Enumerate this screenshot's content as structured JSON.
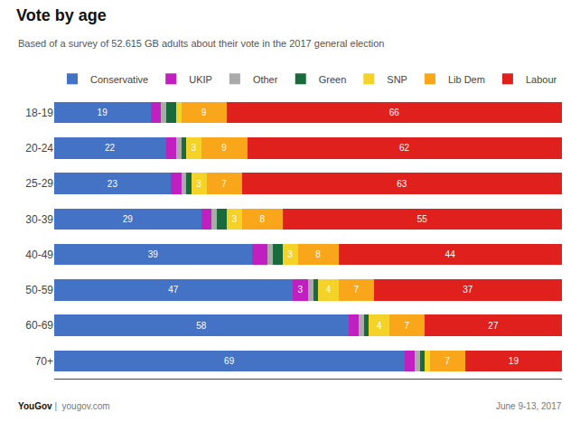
{
  "chart_data": {
    "type": "bar",
    "orientation": "horizontal",
    "stacked": true,
    "title": "Vote by age",
    "subtitle": "Based of a survey of 52.615 GB adults about their vote in the 2017 general election",
    "annotations": [
      "YouGov",
      "|  yougov.com",
      "June 9-13, 2017"
    ],
    "categories": [
      "18-19",
      "20-24",
      "25-29",
      "30-39",
      "40-49",
      "50-59",
      "60-69",
      "70+"
    ],
    "series": [
      {
        "name": "Conservative",
        "color": "#4472C4",
        "values": [
          19,
          22,
          23,
          29,
          39,
          47,
          58,
          69
        ],
        "value_labels": [
          "19",
          "22",
          "23",
          "29",
          "39",
          "47",
          "58",
          "69"
        ]
      },
      {
        "name": "UKIP",
        "color": "#C020C0",
        "values": [
          2,
          2,
          2,
          2,
          3,
          3,
          2,
          2
        ],
        "value_labels": [
          null,
          null,
          null,
          null,
          null,
          "3",
          null,
          null
        ]
      },
      {
        "name": "Other",
        "color": "#AAAAAA",
        "values": [
          1,
          1,
          1,
          1,
          1,
          1,
          1,
          1
        ],
        "value_labels": [
          null,
          null,
          null,
          null,
          null,
          null,
          null,
          null
        ]
      },
      {
        "name": "Green",
        "color": "#1A6B3C",
        "values": [
          2,
          1,
          1,
          2,
          2,
          1,
          1,
          1
        ],
        "value_labels": [
          null,
          null,
          null,
          null,
          null,
          null,
          null,
          null
        ]
      },
      {
        "name": "SNP",
        "color": "#F5D227",
        "values": [
          1,
          3,
          3,
          3,
          3,
          4,
          4,
          1
        ],
        "value_labels": [
          null,
          "3",
          "3",
          "3",
          "3",
          "4",
          "4",
          null
        ]
      },
      {
        "name": "Lib Dem",
        "color": "#FAA61A",
        "values": [
          9,
          9,
          7,
          8,
          8,
          7,
          7,
          7
        ],
        "value_labels": [
          "9",
          "9",
          "7",
          "8",
          "8",
          "7",
          "7",
          "7"
        ]
      },
      {
        "name": "Labour",
        "color": "#E0201C",
        "values": [
          66,
          62,
          63,
          55,
          44,
          37,
          27,
          19
        ],
        "value_labels": [
          "66",
          "62",
          "63",
          "55",
          "44",
          "37",
          "27",
          "19"
        ]
      }
    ],
    "xlim": [
      0,
      100
    ],
    "xticks": [],
    "tick_labels": "y",
    "grid": false,
    "legend": "top left",
    "data_labels": true
  }
}
